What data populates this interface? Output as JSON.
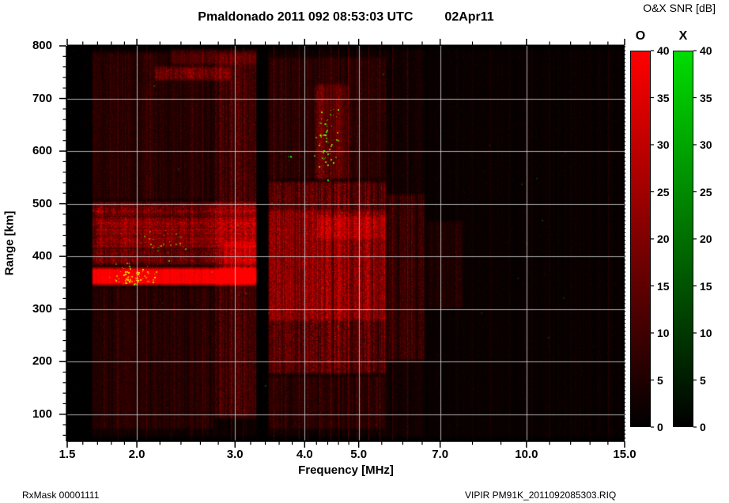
{
  "title": {
    "main": "Pmaldonado 2011 092 08:53:03 UTC",
    "date": "02Apr11"
  },
  "colorbar_header": "O&X SNR [dB]",
  "footer": {
    "rxmask": "RxMask 00001111",
    "file": "VIPIR  PM91K_2011092085303.RIQ"
  },
  "chart_data": {
    "type": "heatmap",
    "title": "Pmaldonado 2011 092 08:53:03 UTC 02Apr11",
    "station": "Pmaldonado",
    "timestamp": "2011 092 08:53:03 UTC",
    "xlabel": "Frequency [MHz]",
    "ylabel": "Range [km]",
    "x_scale": "log",
    "xlim": [
      1.5,
      15.0
    ],
    "ylim": [
      50,
      800
    ],
    "x_ticks": [
      1.5,
      2.0,
      3.0,
      4.0,
      5.0,
      7.0,
      10.0,
      15.0
    ],
    "x_tick_labels": [
      "1.5",
      "2.0",
      "3.0",
      "4.0",
      "5.0",
      "7.0",
      "10.0",
      "15.0"
    ],
    "x_minor_ticks": [
      1.6,
      1.7,
      1.8,
      1.9,
      2.2,
      2.4,
      2.6,
      2.8,
      3.2,
      3.4,
      3.6,
      3.8,
      4.2,
      4.4,
      4.6,
      4.8,
      5.5,
      6.0,
      6.5,
      8.0,
      9.0,
      11.0,
      12.0,
      13.0,
      14.0
    ],
    "y_ticks": [
      100,
      200,
      300,
      400,
      500,
      600,
      700,
      800
    ],
    "y_minor_step": 20,
    "grid": true,
    "grid_color": "#d8d8d8",
    "background": "#000000",
    "colorbars": [
      {
        "mode": "O",
        "color": "#ff0000",
        "min": 0,
        "max": 40,
        "step": 5,
        "unit": "dB"
      },
      {
        "mode": "X",
        "color": "#00dd00",
        "min": 0,
        "max": 40,
        "step": 5,
        "unit": "dB"
      }
    ],
    "features": {
      "o_mode_regions": [
        {
          "f1": 1.66,
          "f2": 3.28,
          "r1": 343,
          "r2": 380,
          "snr": 39,
          "solid": true,
          "desc": "saturated F-region echo band"
        },
        {
          "f1": 2.85,
          "f2": 3.28,
          "r1": 350,
          "r2": 430,
          "snr": 14,
          "desc": "thicker bright blob right end of echo"
        },
        {
          "f1": 1.66,
          "f2": 3.28,
          "r1": 380,
          "r2": 505,
          "snr": 15,
          "rows": true,
          "desc": "spread-F above echo"
        },
        {
          "f1": 1.7,
          "f2": 3.28,
          "r1": 415,
          "r2": 475,
          "snr": 8,
          "rows": true
        },
        {
          "f1": 2.75,
          "f2": 3.28,
          "r1": 90,
          "r2": 790,
          "snr": 9,
          "stripe": true
        },
        {
          "f1": 1.66,
          "f2": 2.75,
          "r1": 70,
          "r2": 343,
          "snr": 3.5,
          "stripe": true
        },
        {
          "f1": 1.66,
          "f2": 2.75,
          "r1": 505,
          "r2": 790,
          "snr": 3.5,
          "stripe": true
        },
        {
          "f1": 2.15,
          "f2": 2.95,
          "r1": 733,
          "r2": 763,
          "snr": 14,
          "desc": "streak near top"
        },
        {
          "f1": 2.3,
          "f2": 3.28,
          "r1": 763,
          "r2": 795,
          "snr": 7
        },
        {
          "f1": 3.44,
          "f2": 5.62,
          "r1": 175,
          "r2": 545,
          "snr": 13,
          "stripe": true,
          "desc": "mid-band striped noise"
        },
        {
          "f1": 3.44,
          "f2": 5.62,
          "r1": 275,
          "r2": 490,
          "snr": 10,
          "stripe": true
        },
        {
          "f1": 4.15,
          "f2": 4.8,
          "r1": 545,
          "r2": 730,
          "snr": 9,
          "stripe": true
        },
        {
          "f1": 3.44,
          "f2": 5.62,
          "r1": 545,
          "r2": 780,
          "snr": 4,
          "stripe": true
        },
        {
          "f1": 3.44,
          "f2": 5.62,
          "r1": 70,
          "r2": 175,
          "snr": 4,
          "stripe": true
        },
        {
          "f1": 4.2,
          "f2": 5.62,
          "r1": 430,
          "r2": 478,
          "snr": 9,
          "desc": "faint echo trace"
        },
        {
          "f1": 5.62,
          "f2": 6.6,
          "r1": 200,
          "r2": 520,
          "snr": 6,
          "stripe": true
        },
        {
          "f1": 6.6,
          "f2": 7.7,
          "r1": 300,
          "r2": 470,
          "snr": 3,
          "stripe": true
        },
        {
          "f1": 1.66,
          "f2": 6.6,
          "r1": 55,
          "r2": 795,
          "snr": 1.8,
          "stripe": true
        },
        {
          "f1": 6.6,
          "f2": 14.9,
          "r1": 55,
          "r2": 795,
          "snr": 0.9,
          "stripe": true
        }
      ],
      "rfi_lines": [
        {
          "f": 1.72,
          "snr": 4
        },
        {
          "f": 1.85,
          "snr": 5
        },
        {
          "f": 2.08,
          "snr": 6
        },
        {
          "f": 2.3,
          "snr": 4
        },
        {
          "f": 2.5,
          "snr": 6
        },
        {
          "f": 2.62,
          "snr": 5
        },
        {
          "f": 2.95,
          "snr": 7
        },
        {
          "f": 3.1,
          "snr": 6
        },
        {
          "f": 3.52,
          "snr": 10
        },
        {
          "f": 3.7,
          "snr": 7
        },
        {
          "f": 3.9,
          "snr": 9
        },
        {
          "f": 4.05,
          "snr": 7
        },
        {
          "f": 4.25,
          "snr": 9
        },
        {
          "f": 4.45,
          "snr": 10
        },
        {
          "f": 4.6,
          "snr": 8
        },
        {
          "f": 4.78,
          "snr": 9
        },
        {
          "f": 4.95,
          "snr": 10
        },
        {
          "f": 5.2,
          "snr": 9
        },
        {
          "f": 5.45,
          "snr": 9
        },
        {
          "f": 5.75,
          "snr": 6
        },
        {
          "f": 6.1,
          "snr": 5
        },
        {
          "f": 6.45,
          "snr": 4
        },
        {
          "f": 7.0,
          "snr": 2.5
        },
        {
          "f": 7.5,
          "snr": 2
        },
        {
          "f": 8.0,
          "snr": 2.5
        },
        {
          "f": 8.6,
          "snr": 2
        },
        {
          "f": 9.3,
          "snr": 2
        },
        {
          "f": 10.2,
          "snr": 2
        },
        {
          "f": 11.0,
          "snr": 2
        },
        {
          "f": 12.0,
          "snr": 2
        },
        {
          "f": 13.0,
          "snr": 2
        },
        {
          "f": 14.0,
          "snr": 2
        }
      ],
      "quiet_gaps": [
        {
          "f1": 3.28,
          "f2": 3.44
        },
        {
          "f1": 1.5,
          "f2": 1.64
        }
      ],
      "x_mode_clusters": [
        {
          "f1": 1.78,
          "f2": 2.2,
          "r1": 340,
          "r2": 390,
          "count": 75,
          "snr": 30,
          "desc": "green speckles on lower-left echo"
        },
        {
          "f1": 1.95,
          "f2": 2.5,
          "r1": 390,
          "r2": 460,
          "count": 28,
          "snr": 24
        },
        {
          "f1": 4.15,
          "f2": 4.62,
          "r1": 540,
          "r2": 705,
          "count": 60,
          "snr": 32,
          "desc": "green speckle cloud upper middle"
        },
        {
          "f1": 3.65,
          "f2": 3.85,
          "r1": 570,
          "r2": 605,
          "count": 6,
          "snr": 22
        },
        {
          "f1": 1.7,
          "f2": 6.5,
          "r1": 60,
          "r2": 780,
          "count": 30,
          "snr": 10
        },
        {
          "f1": 6.5,
          "f2": 14.8,
          "r1": 60,
          "r2": 780,
          "count": 12,
          "snr": 7
        }
      ]
    }
  }
}
